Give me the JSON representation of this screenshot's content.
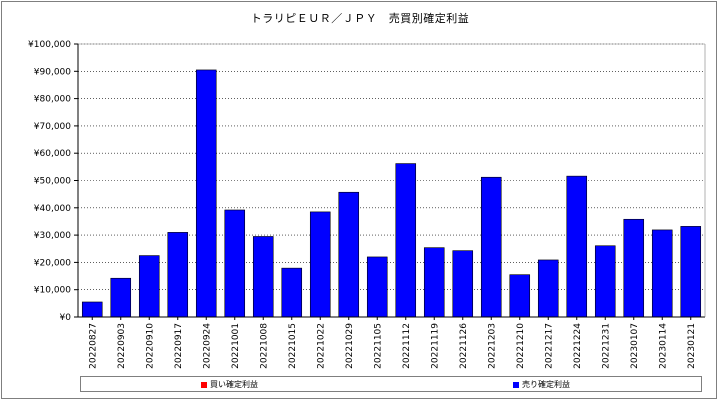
{
  "chart_data": {
    "type": "bar",
    "title": "トラリピＥＵＲ／ＪＰＹ　売買別確定利益",
    "xlabel": "",
    "ylabel": "",
    "ylim": [
      0,
      100000
    ],
    "yticks": [
      0,
      10000,
      20000,
      30000,
      40000,
      50000,
      60000,
      70000,
      80000,
      90000,
      100000
    ],
    "ytick_labels": [
      "¥0",
      "¥10,000",
      "¥20,000",
      "¥30,000",
      "¥40,000",
      "¥50,000",
      "¥60,000",
      "¥70,000",
      "¥80,000",
      "¥90,000",
      "¥100,000"
    ],
    "categories": [
      "20220827",
      "20220903",
      "20220910",
      "20220917",
      "20220924",
      "20221001",
      "20221008",
      "20221015",
      "20221022",
      "20221029",
      "20221105",
      "20221112",
      "20221119",
      "20221126",
      "20221203",
      "20221210",
      "20221217",
      "20221224",
      "20221231",
      "20230107",
      "20230114",
      "20230121"
    ],
    "series": [
      {
        "name": "買い確定利益",
        "color": "#ff0000",
        "values": [
          0,
          0,
          0,
          0,
          0,
          0,
          0,
          0,
          0,
          0,
          0,
          0,
          0,
          0,
          0,
          0,
          0,
          0,
          0,
          0,
          0,
          0
        ]
      },
      {
        "name": "売り確定利益",
        "color": "#0000ff",
        "values": [
          5500,
          14200,
          22500,
          31000,
          90500,
          39200,
          29500,
          17900,
          38500,
          45700,
          22000,
          56200,
          25400,
          24300,
          51200,
          15500,
          20900,
          51600,
          26100,
          35800,
          31900,
          33200
        ]
      }
    ],
    "grid": true,
    "legend": "bottom"
  }
}
